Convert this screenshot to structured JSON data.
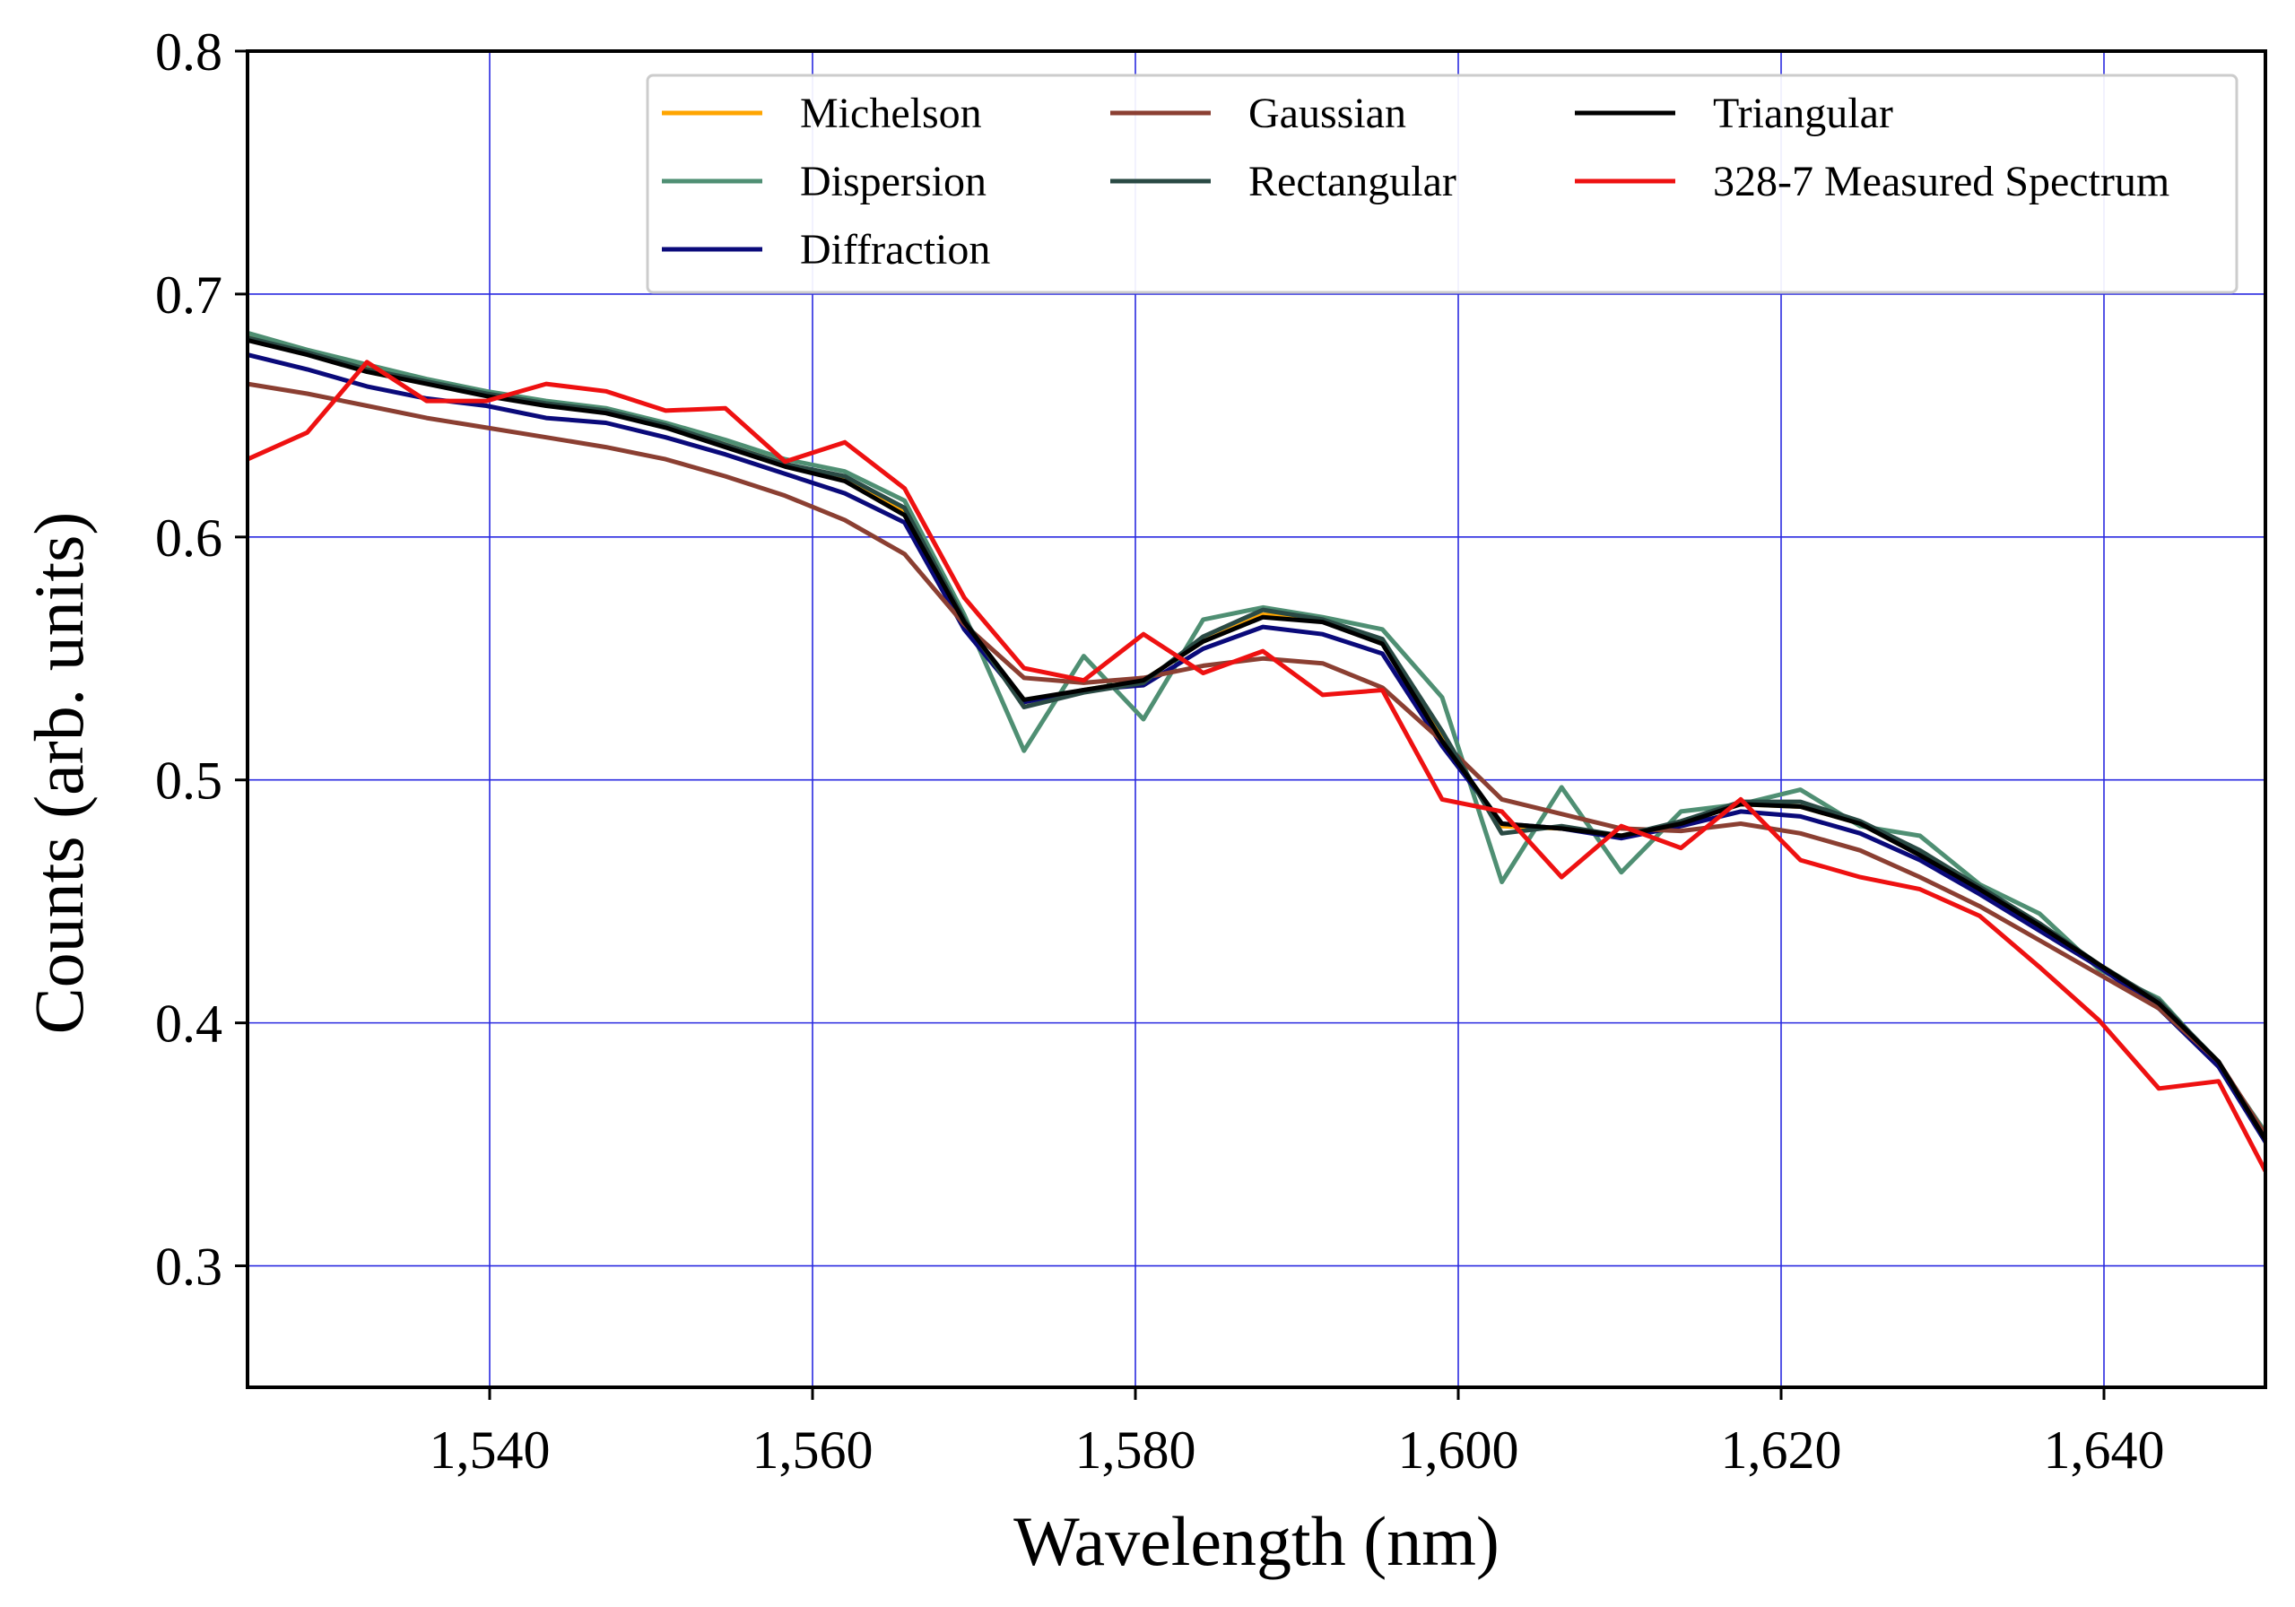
{
  "chart_data": {
    "type": "line",
    "title": "",
    "xlabel": "Wavelength (nm)",
    "ylabel": "Counts (arb. units)",
    "xlim": [
      1525,
      1650
    ],
    "ylim": [
      0.25,
      0.8
    ],
    "grid": true,
    "legend_position": "top-right",
    "xticks": [
      1540,
      1560,
      1580,
      1600,
      1620,
      1640
    ],
    "xtick_labels": [
      "1,540",
      "1,560",
      "1,580",
      "1,600",
      "1,620",
      "1,640"
    ],
    "yticks": [
      0.3,
      0.4,
      0.5,
      0.6,
      0.7,
      0.8
    ],
    "ytick_labels": [
      "0.3",
      "0.4",
      "0.5",
      "0.6",
      "0.7",
      "0.8"
    ],
    "x": [
      1525,
      1528.7,
      1532.4,
      1536.1,
      1539.8,
      1543.5,
      1547.2,
      1550.9,
      1554.6,
      1558.3,
      1562,
      1565.7,
      1569.4,
      1573.1,
      1576.8,
      1580.5,
      1584.2,
      1587.9,
      1591.6,
      1595.3,
      1599,
      1602.7,
      1606.4,
      1610.1,
      1613.8,
      1617.5,
      1621.2,
      1624.9,
      1628.6,
      1632.3,
      1636,
      1639.7,
      1643.4,
      1647.1,
      1650
    ],
    "series": [
      {
        "name": "Michelson",
        "color": "#ffa500",
        "values": [
          0.683,
          0.676,
          0.67,
          0.664,
          0.659,
          0.655,
          0.652,
          0.646,
          0.638,
          0.63,
          0.624,
          0.61,
          0.565,
          0.532,
          0.537,
          0.541,
          0.557,
          0.568,
          0.566,
          0.557,
          0.517,
          0.481,
          0.48,
          0.477,
          0.482,
          0.49,
          0.489,
          0.482,
          0.469,
          0.455,
          0.44,
          0.424,
          0.408,
          0.384,
          0.352
        ]
      },
      {
        "name": "Dispersion",
        "color": "#4f8f73",
        "values": [
          0.684,
          0.677,
          0.671,
          0.665,
          0.66,
          0.656,
          0.653,
          0.647,
          0.64,
          0.632,
          0.627,
          0.615,
          0.568,
          0.512,
          0.551,
          0.525,
          0.566,
          0.571,
          0.567,
          0.562,
          0.534,
          0.458,
          0.497,
          0.462,
          0.487,
          0.49,
          0.496,
          0.481,
          0.477,
          0.457,
          0.445,
          0.422,
          0.41,
          0.383,
          0.355
        ]
      },
      {
        "name": "Diffraction",
        "color": "#0a0a7a",
        "values": [
          0.675,
          0.669,
          0.662,
          0.657,
          0.654,
          0.649,
          0.647,
          0.641,
          0.634,
          0.626,
          0.618,
          0.606,
          0.562,
          0.532,
          0.537,
          0.539,
          0.554,
          0.563,
          0.56,
          0.552,
          0.514,
          0.482,
          0.48,
          0.476,
          0.481,
          0.487,
          0.485,
          0.478,
          0.467,
          0.453,
          0.438,
          0.423,
          0.406,
          0.382,
          0.351
        ]
      },
      {
        "name": "Gaussian",
        "color": "#8b3f32",
        "values": [
          0.663,
          0.659,
          0.654,
          0.649,
          0.645,
          0.641,
          0.637,
          0.632,
          0.625,
          0.617,
          0.607,
          0.593,
          0.564,
          0.542,
          0.54,
          0.542,
          0.547,
          0.55,
          0.548,
          0.538,
          0.516,
          0.492,
          0.486,
          0.48,
          0.479,
          0.482,
          0.478,
          0.471,
          0.46,
          0.448,
          0.434,
          0.42,
          0.406,
          0.384,
          0.354
        ]
      },
      {
        "name": "Rectangular",
        "color": "#2a4a44",
        "values": [
          0.682,
          0.676,
          0.669,
          0.664,
          0.659,
          0.655,
          0.652,
          0.646,
          0.638,
          0.63,
          0.625,
          0.612,
          0.566,
          0.53,
          0.536,
          0.54,
          0.559,
          0.57,
          0.566,
          0.558,
          0.52,
          0.478,
          0.481,
          0.477,
          0.483,
          0.491,
          0.491,
          0.483,
          0.471,
          0.456,
          0.441,
          0.424,
          0.409,
          0.384,
          0.352
        ]
      },
      {
        "name": "Triangular",
        "color": "#000000",
        "values": [
          0.681,
          0.675,
          0.668,
          0.663,
          0.658,
          0.654,
          0.651,
          0.645,
          0.637,
          0.629,
          0.623,
          0.609,
          0.565,
          0.533,
          0.537,
          0.541,
          0.557,
          0.567,
          0.565,
          0.556,
          0.516,
          0.482,
          0.48,
          0.477,
          0.482,
          0.49,
          0.489,
          0.482,
          0.469,
          0.455,
          0.44,
          0.424,
          0.408,
          0.384,
          0.352
        ]
      },
      {
        "name": "328-7 Measured Spectrum",
        "color": "#ee1111",
        "values": [
          0.632,
          0.643,
          0.672,
          0.656,
          0.656,
          0.663,
          0.66,
          0.652,
          0.653,
          0.631,
          0.639,
          0.62,
          0.575,
          0.546,
          0.541,
          0.56,
          0.544,
          0.553,
          0.535,
          0.537,
          0.492,
          0.487,
          0.46,
          0.481,
          0.472,
          0.492,
          0.467,
          0.46,
          0.455,
          0.444,
          0.423,
          0.401,
          0.373,
          0.376,
          0.339
        ]
      }
    ]
  }
}
